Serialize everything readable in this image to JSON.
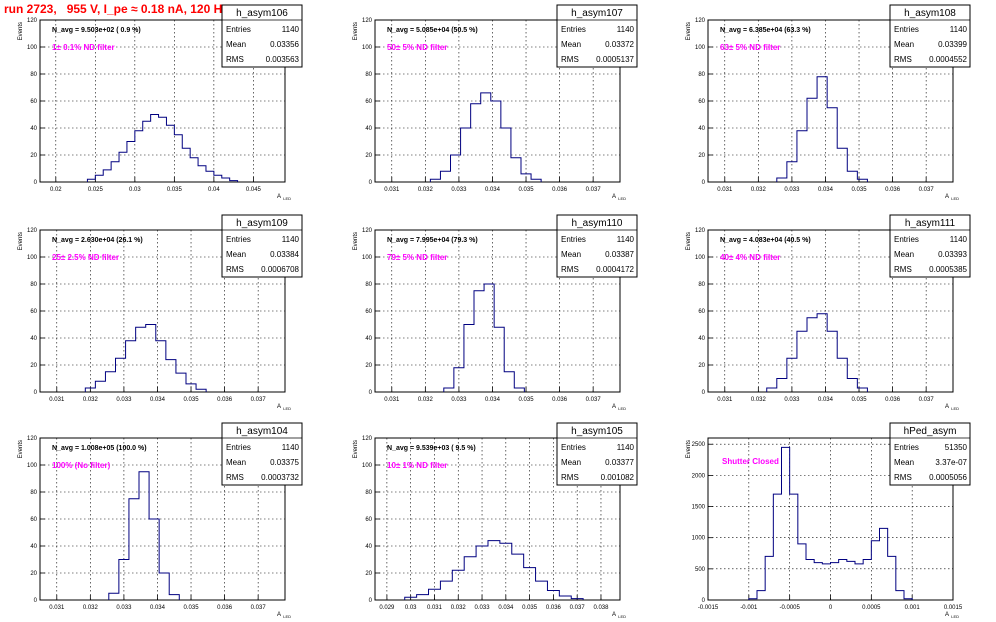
{
  "page": {
    "title": "run 2723,   955 V, I_pe ≈ 0.18 nA, 120 Hz"
  },
  "axis_labels": {
    "y": "Events",
    "x_main": "A",
    "x_sub": "LED"
  },
  "colors": {
    "hist": "#000080",
    "filter_text": "#ff00ff",
    "title": "#ff0000",
    "grid": "#000000"
  },
  "chart_data": [
    {
      "type": "histogram",
      "hist_name": "h_asym106",
      "navg_text": "N_avg = 9.503e+02 ( 0.9 %)",
      "filter_text": "1± 0.1% ND filter",
      "stats": {
        "Entries": "1140",
        "Mean": "0.03356",
        "RMS": "0.003563"
      },
      "xlim": [
        0.018,
        0.049
      ],
      "ylim": [
        0,
        120
      ],
      "xticks": [
        0.02,
        0.025,
        0.03,
        0.035,
        0.04,
        0.045
      ],
      "xtick_labels": [
        "0.02",
        "0.025",
        "0.03",
        "0.035",
        "0.04",
        "0.045"
      ],
      "yticks": [
        0,
        20,
        40,
        60,
        80,
        100,
        120
      ],
      "x": [
        0.0245,
        0.0255,
        0.0265,
        0.0275,
        0.0285,
        0.0295,
        0.0305,
        0.0315,
        0.0325,
        0.0335,
        0.0345,
        0.0355,
        0.0365,
        0.0375,
        0.0385,
        0.0395,
        0.0405,
        0.0415,
        0.0425
      ],
      "values": [
        2,
        5,
        9,
        15,
        22,
        30,
        38,
        45,
        50,
        48,
        42,
        35,
        25,
        18,
        12,
        8,
        5,
        3,
        1
      ]
    },
    {
      "type": "histogram",
      "hist_name": "h_asym107",
      "navg_text": "N_avg = 5.085e+04 (50.5 %)",
      "filter_text": "50± 5% ND filter",
      "stats": {
        "Entries": "1140",
        "Mean": "0.03372",
        "RMS": "0.0005137"
      },
      "xlim": [
        0.0305,
        0.0378
      ],
      "ylim": [
        0,
        120
      ],
      "xticks": [
        0.031,
        0.032,
        0.033,
        0.034,
        0.035,
        0.036,
        0.037
      ],
      "xtick_labels": [
        "0.031",
        "0.032",
        "0.033",
        "0.034",
        "0.035",
        "0.036",
        "0.037"
      ],
      "yticks": [
        0,
        20,
        40,
        60,
        80,
        100,
        120
      ],
      "x": [
        0.0323,
        0.0326,
        0.0329,
        0.0332,
        0.0335,
        0.0338,
        0.0341,
        0.0344,
        0.0347,
        0.035,
        0.0353
      ],
      "values": [
        2,
        8,
        20,
        40,
        58,
        66,
        60,
        40,
        18,
        6,
        2
      ]
    },
    {
      "type": "histogram",
      "hist_name": "h_asym108",
      "navg_text": "N_avg = 6.385e+04 (63.3 %)",
      "filter_text": "63± 5% ND filter",
      "stats": {
        "Entries": "1140",
        "Mean": "0.03399",
        "RMS": "0.0004552"
      },
      "xlim": [
        0.0305,
        0.0378
      ],
      "ylim": [
        0,
        120
      ],
      "xticks": [
        0.031,
        0.032,
        0.033,
        0.034,
        0.035,
        0.036,
        0.037
      ],
      "xtick_labels": [
        "0.031",
        "0.032",
        "0.033",
        "0.034",
        "0.035",
        "0.036",
        "0.037"
      ],
      "yticks": [
        0,
        20,
        40,
        60,
        80,
        100,
        120
      ],
      "x": [
        0.0327,
        0.033,
        0.0333,
        0.0336,
        0.0339,
        0.0342,
        0.0345,
        0.0348,
        0.0351
      ],
      "values": [
        3,
        15,
        38,
        62,
        78,
        55,
        25,
        8,
        2
      ]
    },
    {
      "type": "histogram",
      "hist_name": "h_asym109",
      "navg_text": "N_avg = 2.630e+04 (26.1 %)",
      "filter_text": "25± 2.5% ND filter",
      "stats": {
        "Entries": "1140",
        "Mean": "0.03384",
        "RMS": "0.0006708"
      },
      "xlim": [
        0.0305,
        0.0378
      ],
      "ylim": [
        0,
        120
      ],
      "xticks": [
        0.031,
        0.032,
        0.033,
        0.034,
        0.035,
        0.036,
        0.037
      ],
      "xtick_labels": [
        "0.031",
        "0.032",
        "0.033",
        "0.034",
        "0.035",
        "0.036",
        "0.037"
      ],
      "yticks": [
        0,
        20,
        40,
        60,
        80,
        100,
        120
      ],
      "x": [
        0.032,
        0.0323,
        0.0326,
        0.0329,
        0.0332,
        0.0335,
        0.0338,
        0.0341,
        0.0344,
        0.0347,
        0.035,
        0.0353
      ],
      "values": [
        3,
        8,
        15,
        25,
        38,
        48,
        50,
        38,
        24,
        14,
        6,
        2
      ]
    },
    {
      "type": "histogram",
      "hist_name": "h_asym110",
      "navg_text": "N_avg = 7.995e+04 (79.3 %)",
      "filter_text": "79± 5% ND filter",
      "stats": {
        "Entries": "1140",
        "Mean": "0.03387",
        "RMS": "0.0004172"
      },
      "xlim": [
        0.0305,
        0.0378
      ],
      "ylim": [
        0,
        120
      ],
      "xticks": [
        0.031,
        0.032,
        0.033,
        0.034,
        0.035,
        0.036,
        0.037
      ],
      "xtick_labels": [
        "0.031",
        "0.032",
        "0.033",
        "0.034",
        "0.035",
        "0.036",
        "0.037"
      ],
      "yticks": [
        0,
        20,
        40,
        60,
        80,
        100,
        120
      ],
      "x": [
        0.0327,
        0.033,
        0.0333,
        0.0336,
        0.0339,
        0.0342,
        0.0345,
        0.0348
      ],
      "values": [
        3,
        18,
        50,
        75,
        80,
        48,
        15,
        3
      ]
    },
    {
      "type": "histogram",
      "hist_name": "h_asym111",
      "navg_text": "N_avg = 4.083e+04 (40.5 %)",
      "filter_text": "40± 4% ND filter",
      "stats": {
        "Entries": "1140",
        "Mean": "0.03393",
        "RMS": "0.0005385"
      },
      "xlim": [
        0.0305,
        0.0378
      ],
      "ylim": [
        0,
        120
      ],
      "xticks": [
        0.031,
        0.032,
        0.033,
        0.034,
        0.035,
        0.036,
        0.037
      ],
      "xtick_labels": [
        "0.031",
        "0.032",
        "0.033",
        "0.034",
        "0.035",
        "0.036",
        "0.037"
      ],
      "yticks": [
        0,
        20,
        40,
        60,
        80,
        100,
        120
      ],
      "x": [
        0.0324,
        0.0327,
        0.033,
        0.0333,
        0.0336,
        0.0339,
        0.0342,
        0.0345,
        0.0348,
        0.0351
      ],
      "values": [
        3,
        10,
        25,
        45,
        55,
        58,
        45,
        25,
        10,
        3
      ]
    },
    {
      "type": "histogram",
      "hist_name": "h_asym104",
      "navg_text": "N_avg = 1.008e+05 (100.0 %)",
      "filter_text": "100% (No filter)",
      "stats": {
        "Entries": "1140",
        "Mean": "0.03375",
        "RMS": "0.0003732"
      },
      "xlim": [
        0.0305,
        0.0378
      ],
      "ylim": [
        0,
        120
      ],
      "xticks": [
        0.031,
        0.032,
        0.033,
        0.034,
        0.035,
        0.036,
        0.037
      ],
      "xtick_labels": [
        "0.031",
        "0.032",
        "0.033",
        "0.034",
        "0.035",
        "0.036",
        "0.037"
      ],
      "yticks": [
        0,
        20,
        40,
        60,
        80,
        100,
        120
      ],
      "x": [
        0.0327,
        0.033,
        0.0333,
        0.0336,
        0.0339,
        0.0342,
        0.0345
      ],
      "values": [
        5,
        30,
        75,
        95,
        60,
        20,
        4
      ]
    },
    {
      "type": "histogram",
      "hist_name": "h_asym105",
      "navg_text": "N_avg = 9.539e+03 ( 9.5 %)",
      "filter_text": "10± 1% ND filter",
      "stats": {
        "Entries": "1140",
        "Mean": "0.03377",
        "RMS": "0.001082"
      },
      "xlim": [
        0.0285,
        0.0388
      ],
      "ylim": [
        0,
        120
      ],
      "xticks": [
        0.029,
        0.03,
        0.031,
        0.032,
        0.033,
        0.034,
        0.035,
        0.036,
        0.037,
        0.038
      ],
      "xtick_labels": [
        "0.029",
        "0.03",
        "0.031",
        "0.032",
        "0.033",
        "0.034",
        "0.035",
        "0.036",
        "0.037",
        "0.038"
      ],
      "yticks": [
        0,
        20,
        40,
        60,
        80,
        100,
        120
      ],
      "x": [
        0.03,
        0.0305,
        0.031,
        0.0315,
        0.032,
        0.0325,
        0.033,
        0.0335,
        0.034,
        0.0345,
        0.035,
        0.0355,
        0.036,
        0.0365,
        0.037
      ],
      "values": [
        2,
        4,
        8,
        14,
        22,
        32,
        40,
        44,
        42,
        34,
        24,
        14,
        7,
        3,
        1
      ]
    },
    {
      "type": "histogram",
      "hist_name": "hPed_asym",
      "navg_text": "",
      "filter_text": "Shutter Closed",
      "stats": {
        "Entries": "51350",
        "Mean": "3.37e-07",
        "RMS": "0.0005056"
      },
      "xlim": [
        -0.0015,
        0.0015
      ],
      "ylim": [
        0,
        2600
      ],
      "xticks": [
        -0.0015,
        -0.001,
        -0.0005,
        0,
        0.0005,
        0.001,
        0.0015
      ],
      "xtick_labels": [
        "-0.0015",
        "-0.001",
        "-0.0005",
        "0",
        "0.0005",
        "0.001",
        "0.0015"
      ],
      "yticks": [
        0,
        500,
        1000,
        1500,
        2000,
        2500
      ],
      "x": [
        -0.00095,
        -0.00085,
        -0.00075,
        -0.00065,
        -0.00055,
        -0.00045,
        -0.00035,
        -0.00025,
        -0.00015,
        -5e-05,
        5e-05,
        0.00015,
        0.00025,
        0.00035,
        0.00045,
        0.00055,
        0.00065,
        0.00075,
        0.00085,
        0.00095
      ],
      "values": [
        20,
        150,
        700,
        1700,
        2450,
        1700,
        900,
        650,
        600,
        580,
        600,
        650,
        620,
        580,
        650,
        950,
        1150,
        700,
        150,
        20
      ]
    }
  ]
}
